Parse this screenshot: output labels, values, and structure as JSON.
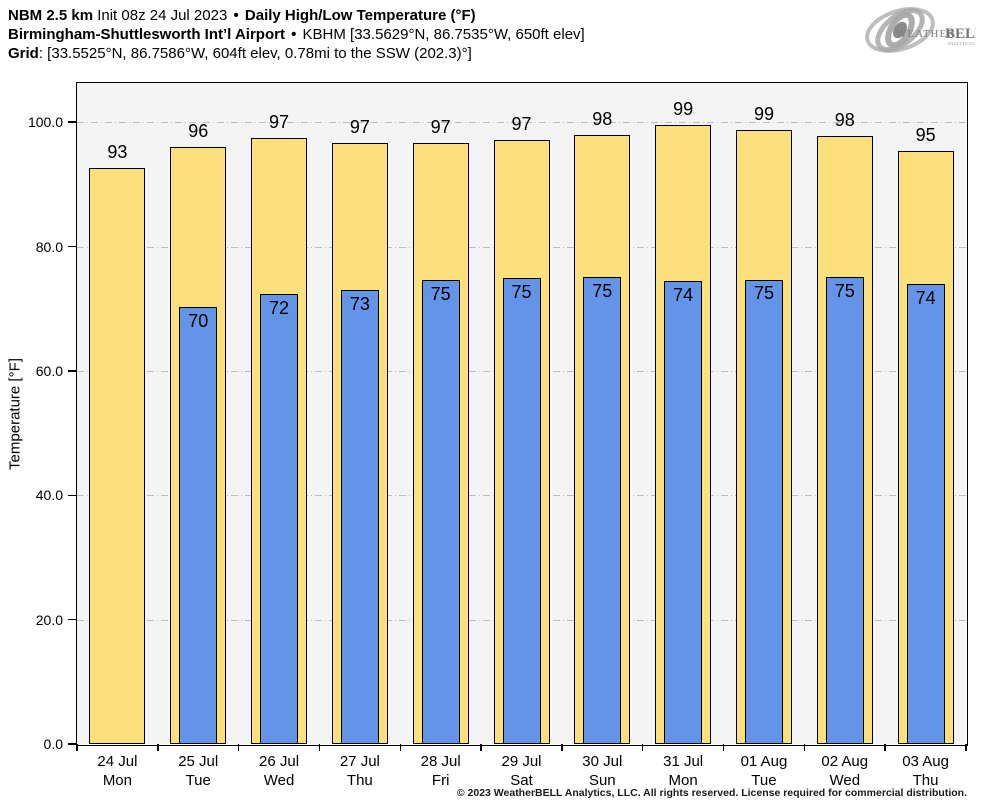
{
  "header": {
    "model": "NBM 2.5 km",
    "init": "Init 08z 24 Jul 2023",
    "separator": "•",
    "product": "Daily High/Low Temperature (°F)",
    "station_name": "Birmingham-Shuttlesworth Int’l Airport",
    "station_details": "KBHM [33.5629°N, 86.7535°W, 650ft elev]",
    "grid_label": "Grid",
    "grid_details": ": [33.5525°N, 86.7586°W, 604ft elev, 0.78mi to the SSW (202.3)°]"
  },
  "logo": {
    "brand_weather": "Weather",
    "brand_bell": "BELL",
    "brand_sub": "Analytics LLC"
  },
  "chart_data": {
    "type": "bar",
    "title": "Daily High/Low Temperature (°F)",
    "xlabel": "",
    "ylabel": "Temperature [°F]",
    "ylim": [
      0,
      106.3
    ],
    "yticks": [
      0,
      20,
      40,
      60,
      80,
      100
    ],
    "ytick_labels": [
      "0.0",
      "20.0",
      "40.0",
      "60.0",
      "80.0",
      "100.0"
    ],
    "grid": "horizontal dash-dot at each 20°F",
    "legend": "none",
    "categories": [
      {
        "date": "24 Jul",
        "day": "Mon"
      },
      {
        "date": "25 Jul",
        "day": "Tue"
      },
      {
        "date": "26 Jul",
        "day": "Wed"
      },
      {
        "date": "27 Jul",
        "day": "Thu"
      },
      {
        "date": "28 Jul",
        "day": "Fri"
      },
      {
        "date": "29 Jul",
        "day": "Sat"
      },
      {
        "date": "30 Jul",
        "day": "Sun"
      },
      {
        "date": "31 Jul",
        "day": "Mon"
      },
      {
        "date": "01 Aug",
        "day": "Tue"
      },
      {
        "date": "02 Aug",
        "day": "Wed"
      },
      {
        "date": "03 Aug",
        "day": "Thu"
      }
    ],
    "series": [
      {
        "name": "Daily High",
        "color": "#FBE07B",
        "labels": [
          93,
          96,
          97,
          97,
          97,
          97,
          98,
          99,
          99,
          98,
          95
        ],
        "values": [
          92.6,
          96.0,
          97.4,
          96.7,
          96.7,
          97.1,
          98.0,
          99.5,
          98.7,
          97.7,
          95.3
        ]
      },
      {
        "name": "Daily Low",
        "color": "#6394E8",
        "labels": [
          null,
          70,
          72,
          73,
          75,
          75,
          75,
          74,
          75,
          75,
          74
        ],
        "values": [
          null,
          70.3,
          72.3,
          73.0,
          74.6,
          74.9,
          75.1,
          74.4,
          74.7,
          75.1,
          73.9
        ]
      }
    ]
  },
  "colors": {
    "high_fill": "#FBE07B",
    "low_fill": "#6394E8",
    "bar_border": "#000000",
    "plot_background": "#F4F4F4",
    "grid_line": "#BDBDBD",
    "logo_gray": "#9a9a9a"
  },
  "footer": {
    "copyright": "© 2023 WeatherBELL Analytics, LLC. All rights reserved. License required for commercial distribution."
  }
}
